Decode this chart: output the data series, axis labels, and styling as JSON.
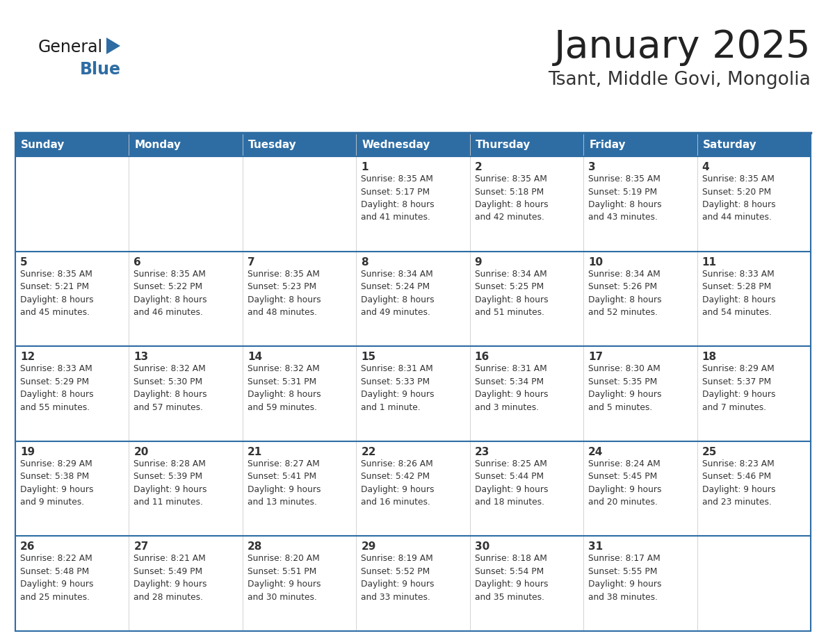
{
  "title": "January 2025",
  "subtitle": "Tsant, Middle Govi, Mongolia",
  "days_of_week": [
    "Sunday",
    "Monday",
    "Tuesday",
    "Wednesday",
    "Thursday",
    "Friday",
    "Saturday"
  ],
  "header_bg": "#2E6DA4",
  "header_text": "#FFFFFF",
  "cell_bg": "#FFFFFF",
  "outer_bg": "#EEEEEE",
  "cell_text": "#333333",
  "separator_color": "#2E6DA4",
  "title_color": "#222222",
  "subtitle_color": "#333333",
  "logo_general_color": "#1a1a1a",
  "logo_blue_color": "#2E6DA4",
  "calendar_data": [
    [
      {
        "day": "",
        "info": ""
      },
      {
        "day": "",
        "info": ""
      },
      {
        "day": "",
        "info": ""
      },
      {
        "day": "1",
        "info": "Sunrise: 8:35 AM\nSunset: 5:17 PM\nDaylight: 8 hours\nand 41 minutes."
      },
      {
        "day": "2",
        "info": "Sunrise: 8:35 AM\nSunset: 5:18 PM\nDaylight: 8 hours\nand 42 minutes."
      },
      {
        "day": "3",
        "info": "Sunrise: 8:35 AM\nSunset: 5:19 PM\nDaylight: 8 hours\nand 43 minutes."
      },
      {
        "day": "4",
        "info": "Sunrise: 8:35 AM\nSunset: 5:20 PM\nDaylight: 8 hours\nand 44 minutes."
      }
    ],
    [
      {
        "day": "5",
        "info": "Sunrise: 8:35 AM\nSunset: 5:21 PM\nDaylight: 8 hours\nand 45 minutes."
      },
      {
        "day": "6",
        "info": "Sunrise: 8:35 AM\nSunset: 5:22 PM\nDaylight: 8 hours\nand 46 minutes."
      },
      {
        "day": "7",
        "info": "Sunrise: 8:35 AM\nSunset: 5:23 PM\nDaylight: 8 hours\nand 48 minutes."
      },
      {
        "day": "8",
        "info": "Sunrise: 8:34 AM\nSunset: 5:24 PM\nDaylight: 8 hours\nand 49 minutes."
      },
      {
        "day": "9",
        "info": "Sunrise: 8:34 AM\nSunset: 5:25 PM\nDaylight: 8 hours\nand 51 minutes."
      },
      {
        "day": "10",
        "info": "Sunrise: 8:34 AM\nSunset: 5:26 PM\nDaylight: 8 hours\nand 52 minutes."
      },
      {
        "day": "11",
        "info": "Sunrise: 8:33 AM\nSunset: 5:28 PM\nDaylight: 8 hours\nand 54 minutes."
      }
    ],
    [
      {
        "day": "12",
        "info": "Sunrise: 8:33 AM\nSunset: 5:29 PM\nDaylight: 8 hours\nand 55 minutes."
      },
      {
        "day": "13",
        "info": "Sunrise: 8:32 AM\nSunset: 5:30 PM\nDaylight: 8 hours\nand 57 minutes."
      },
      {
        "day": "14",
        "info": "Sunrise: 8:32 AM\nSunset: 5:31 PM\nDaylight: 8 hours\nand 59 minutes."
      },
      {
        "day": "15",
        "info": "Sunrise: 8:31 AM\nSunset: 5:33 PM\nDaylight: 9 hours\nand 1 minute."
      },
      {
        "day": "16",
        "info": "Sunrise: 8:31 AM\nSunset: 5:34 PM\nDaylight: 9 hours\nand 3 minutes."
      },
      {
        "day": "17",
        "info": "Sunrise: 8:30 AM\nSunset: 5:35 PM\nDaylight: 9 hours\nand 5 minutes."
      },
      {
        "day": "18",
        "info": "Sunrise: 8:29 AM\nSunset: 5:37 PM\nDaylight: 9 hours\nand 7 minutes."
      }
    ],
    [
      {
        "day": "19",
        "info": "Sunrise: 8:29 AM\nSunset: 5:38 PM\nDaylight: 9 hours\nand 9 minutes."
      },
      {
        "day": "20",
        "info": "Sunrise: 8:28 AM\nSunset: 5:39 PM\nDaylight: 9 hours\nand 11 minutes."
      },
      {
        "day": "21",
        "info": "Sunrise: 8:27 AM\nSunset: 5:41 PM\nDaylight: 9 hours\nand 13 minutes."
      },
      {
        "day": "22",
        "info": "Sunrise: 8:26 AM\nSunset: 5:42 PM\nDaylight: 9 hours\nand 16 minutes."
      },
      {
        "day": "23",
        "info": "Sunrise: 8:25 AM\nSunset: 5:44 PM\nDaylight: 9 hours\nand 18 minutes."
      },
      {
        "day": "24",
        "info": "Sunrise: 8:24 AM\nSunset: 5:45 PM\nDaylight: 9 hours\nand 20 minutes."
      },
      {
        "day": "25",
        "info": "Sunrise: 8:23 AM\nSunset: 5:46 PM\nDaylight: 9 hours\nand 23 minutes."
      }
    ],
    [
      {
        "day": "26",
        "info": "Sunrise: 8:22 AM\nSunset: 5:48 PM\nDaylight: 9 hours\nand 25 minutes."
      },
      {
        "day": "27",
        "info": "Sunrise: 8:21 AM\nSunset: 5:49 PM\nDaylight: 9 hours\nand 28 minutes."
      },
      {
        "day": "28",
        "info": "Sunrise: 8:20 AM\nSunset: 5:51 PM\nDaylight: 9 hours\nand 30 minutes."
      },
      {
        "day": "29",
        "info": "Sunrise: 8:19 AM\nSunset: 5:52 PM\nDaylight: 9 hours\nand 33 minutes."
      },
      {
        "day": "30",
        "info": "Sunrise: 8:18 AM\nSunset: 5:54 PM\nDaylight: 9 hours\nand 35 minutes."
      },
      {
        "day": "31",
        "info": "Sunrise: 8:17 AM\nSunset: 5:55 PM\nDaylight: 9 hours\nand 38 minutes."
      },
      {
        "day": "",
        "info": ""
      }
    ]
  ]
}
